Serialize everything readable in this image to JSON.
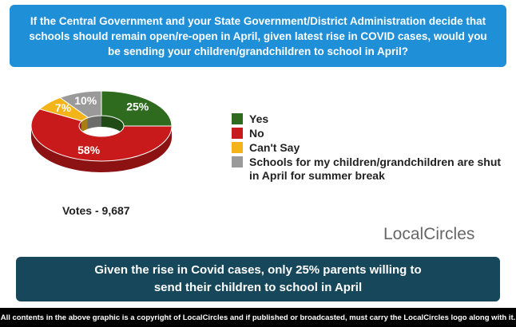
{
  "chart_data": {
    "type": "pie",
    "title": "If the Central Government and your State Government/District Administration decide that schools should remain open/re-open in April, given latest rise in COVID cases, would you be sending your children/grandchildren to school in April?",
    "categories": [
      "Yes",
      "No",
      "Can't Say",
      "Schools for my children/grandchildren are shut in April for summer break"
    ],
    "values": [
      25,
      58,
      7,
      10
    ],
    "value_labels": [
      "25%",
      "58%",
      "7%",
      "10%"
    ],
    "colors": [
      "#2e6b1f",
      "#c8191b",
      "#f2b418",
      "#9a9a9a"
    ],
    "votes": "Votes - 9,687",
    "logo": "LocalCircles",
    "summary": "Given the rise in Covid cases, only 25% parents willing to send their children to school in April",
    "footer": "All contents in the above graphic is a copyright of LocalCircles and if published or broadcasted, must carry the LocalCircles logo along with it."
  }
}
